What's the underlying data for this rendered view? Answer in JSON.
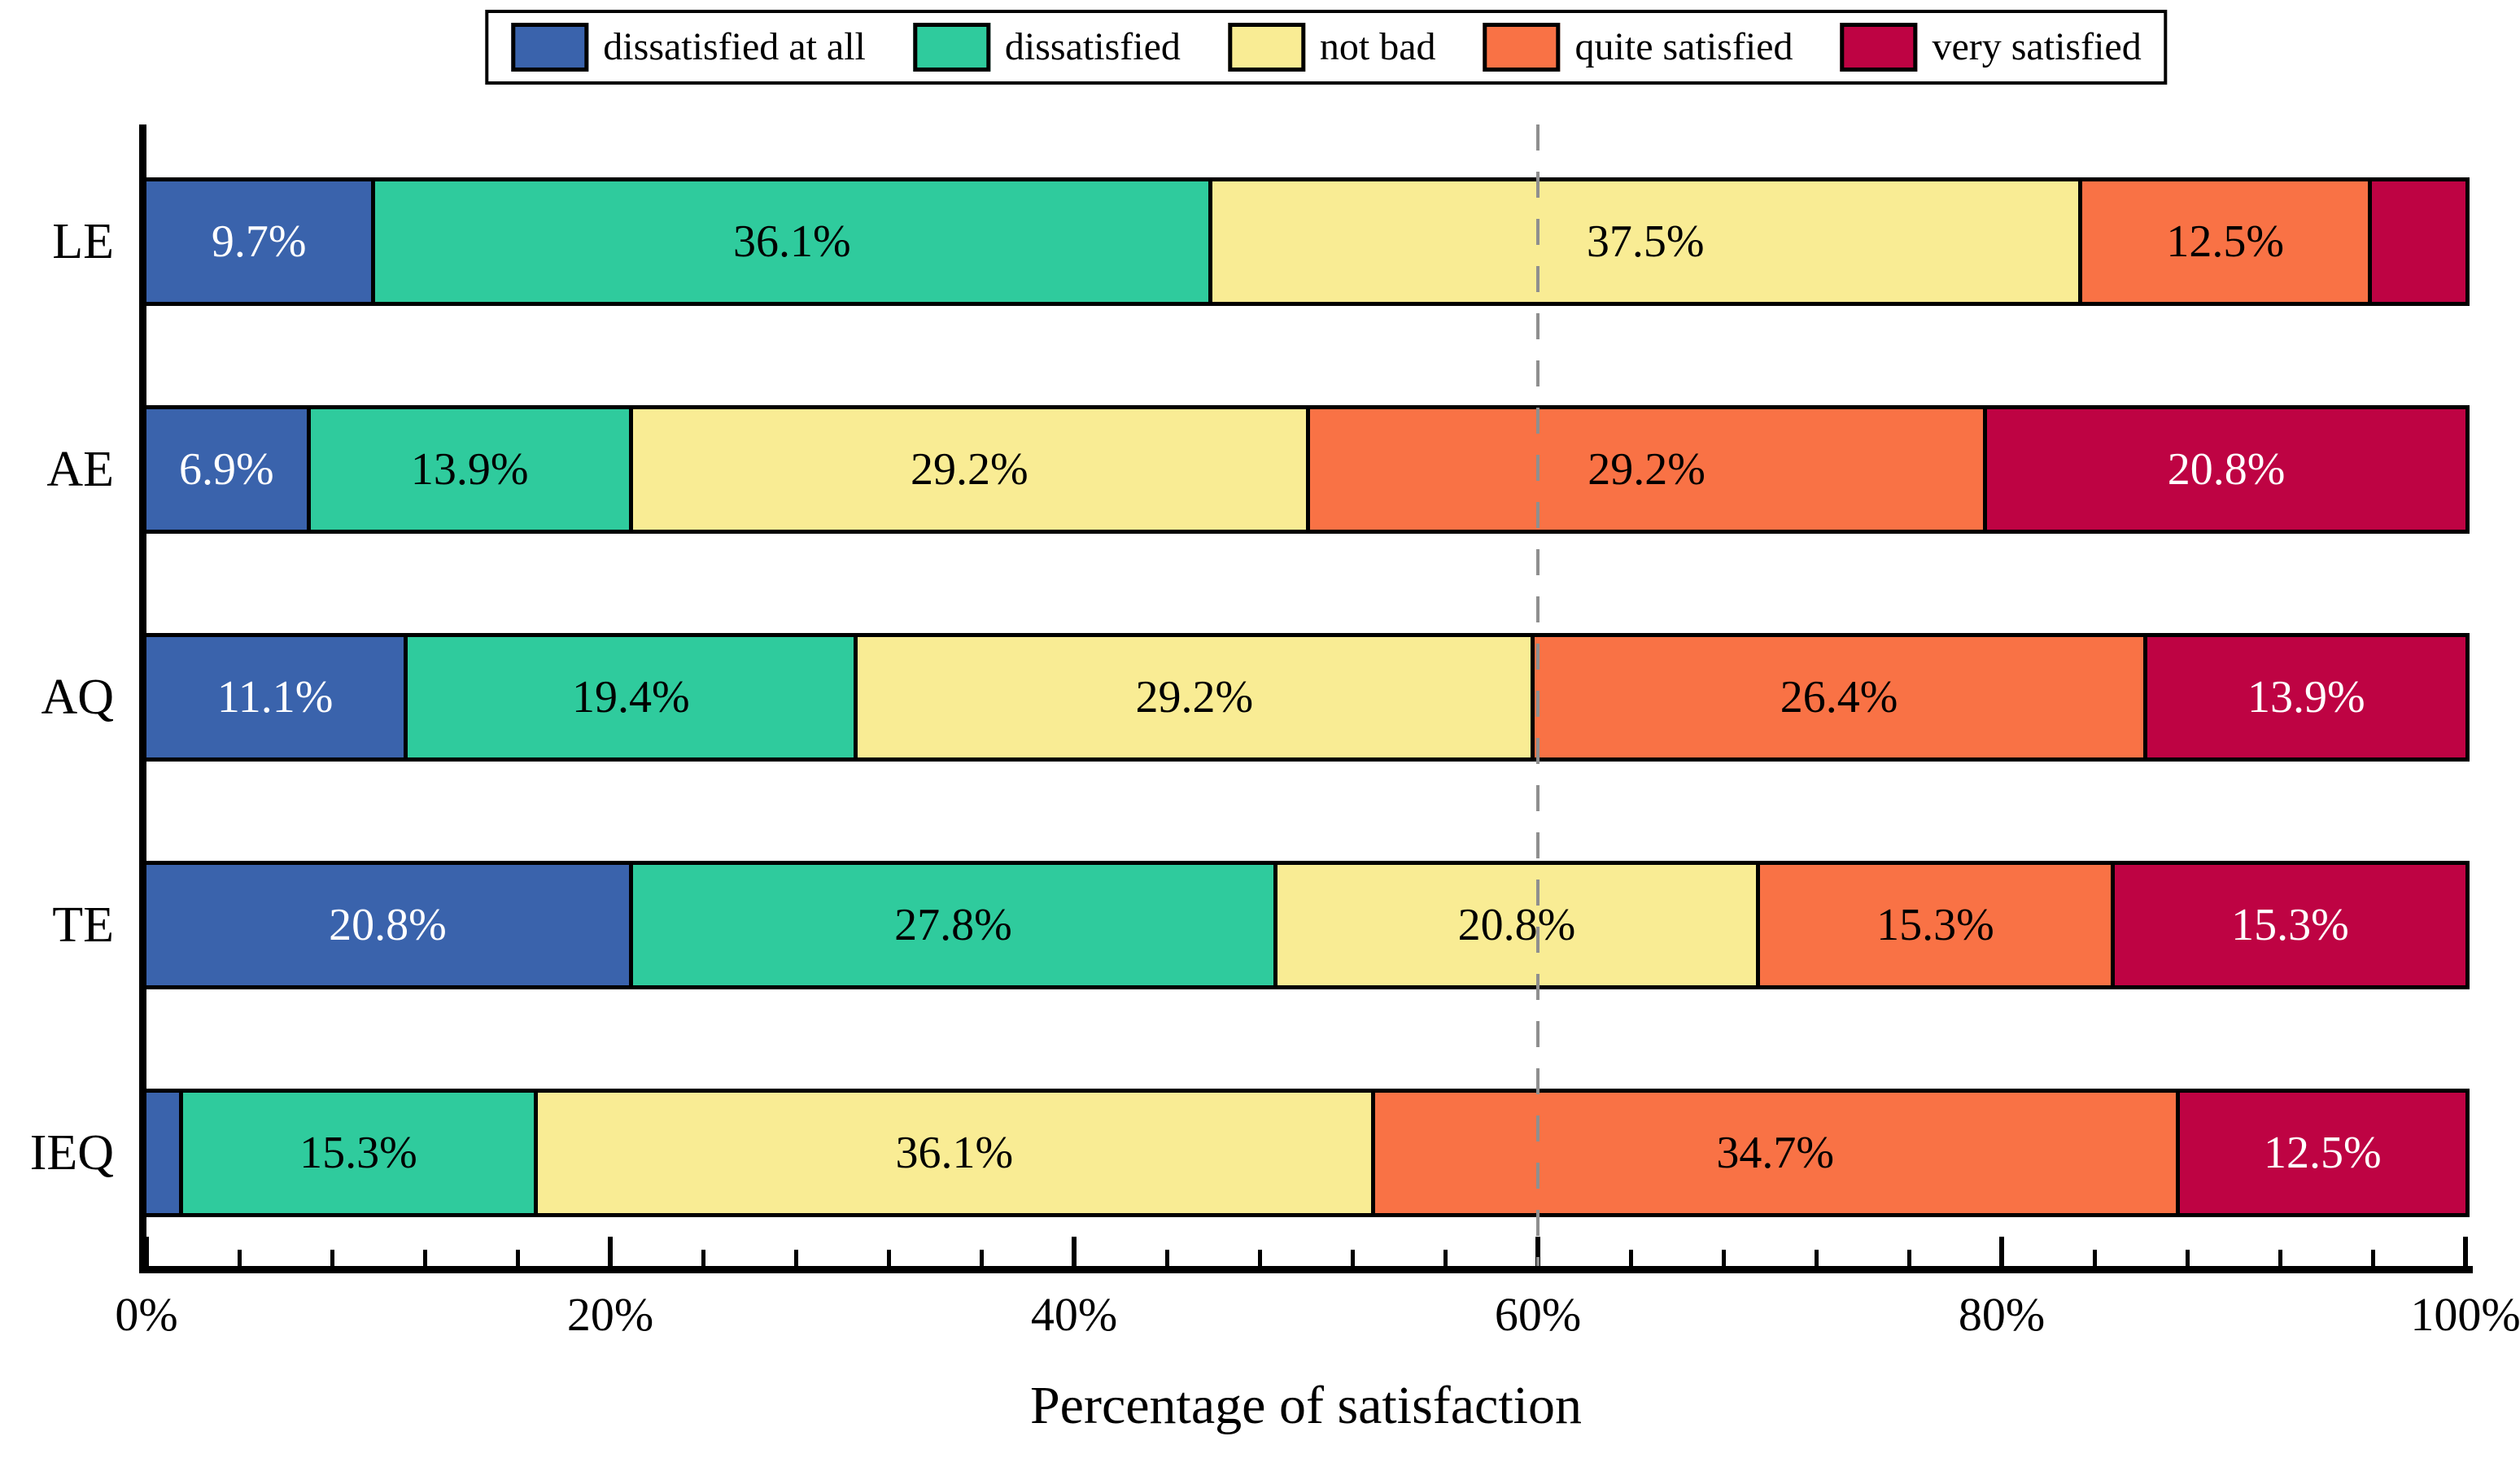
{
  "chart_data": {
    "type": "bar",
    "subtype": "horizontal-stacked-percentage",
    "title": "",
    "xlabel": "Percentage of satisfaction",
    "categories": [
      "LE",
      "AE",
      "AQ",
      "TE",
      "IEQ"
    ],
    "series": [
      {
        "name": "dissatisfied at all",
        "color": "#3A63AC",
        "label_text_color": "#FFFFFF",
        "values": [
          9.7,
          6.9,
          11.1,
          20.8,
          1.4
        ]
      },
      {
        "name": "dissatisfied",
        "color": "#2FCB9D",
        "label_text_color": "#000000",
        "values": [
          36.1,
          13.9,
          19.4,
          27.8,
          15.3
        ]
      },
      {
        "name": "not bad",
        "color": "#F9EC94",
        "label_text_color": "#000000",
        "values": [
          37.5,
          29.2,
          29.2,
          20.8,
          36.1
        ]
      },
      {
        "name": "quite satisfied",
        "color": "#F97245",
        "label_text_color": "#000000",
        "values": [
          12.5,
          29.2,
          26.4,
          15.3,
          34.7
        ]
      },
      {
        "name": "very satisfied",
        "color": "#BE0343",
        "label_text_color": "#FFFFFF",
        "values": [
          4.2,
          20.8,
          13.9,
          15.3,
          12.5
        ]
      }
    ],
    "x_tick_labels": [
      "0%",
      "20%",
      "40%",
      "60%",
      "80%",
      "100%"
    ],
    "x_range": [
      0,
      100
    ],
    "major_tick_step": 20,
    "minor_tick_step": 4,
    "grid": "off",
    "legend_position": "top",
    "reference_line_x": 60,
    "reference_line_color": "#8F8F8F",
    "min_label_value": 5,
    "label_suffix": "%",
    "axis_color": "#000000"
  }
}
